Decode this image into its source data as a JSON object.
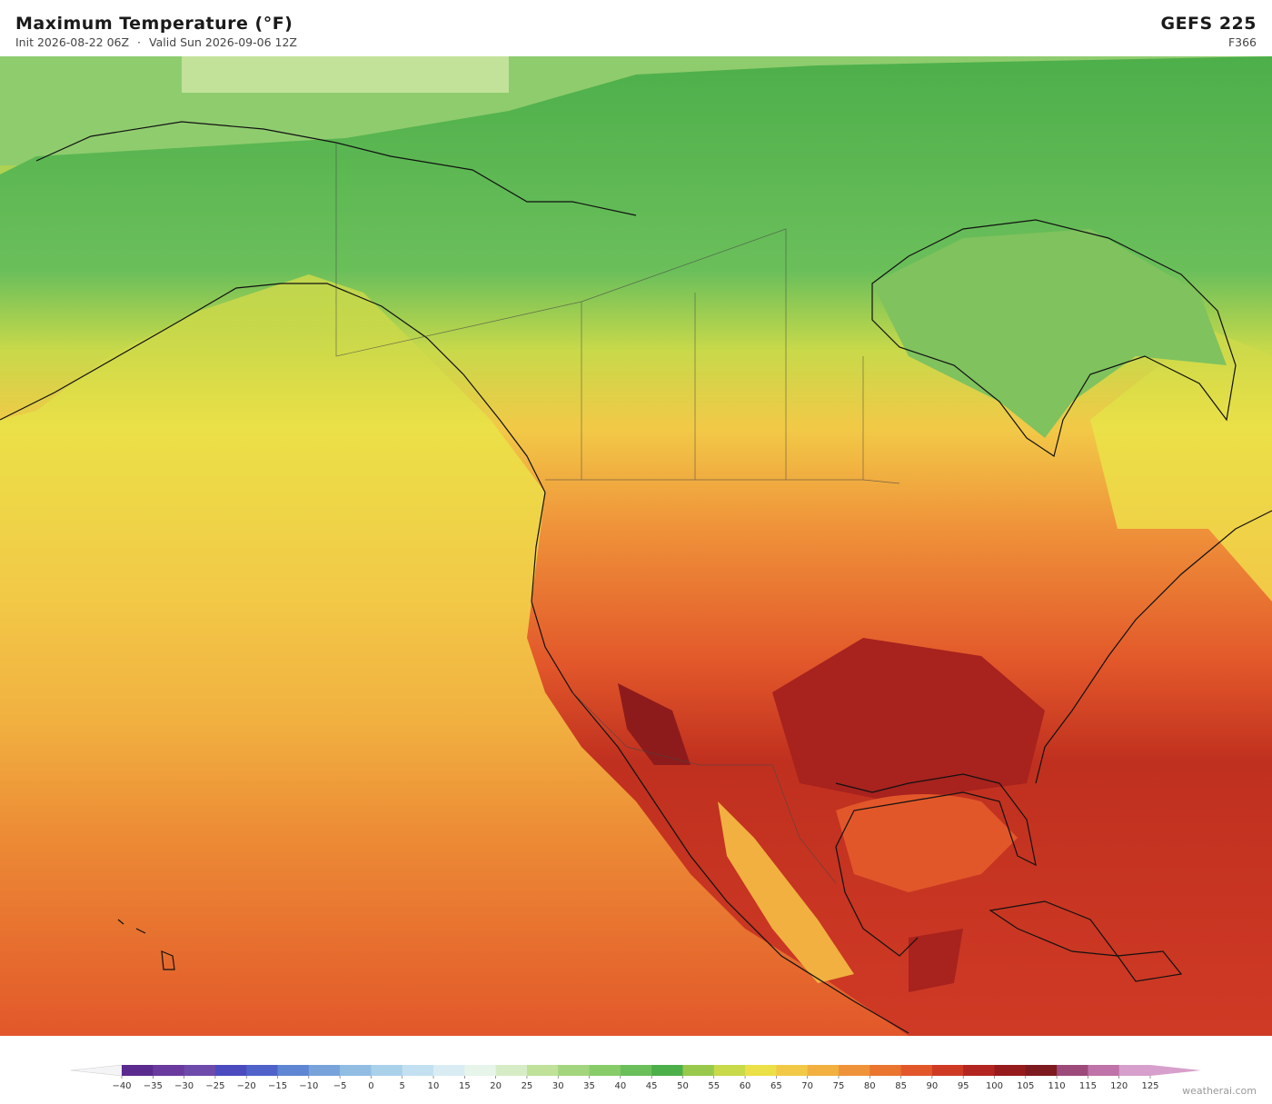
{
  "header": {
    "title": "Maximum Temperature  (°F)",
    "init": "Init 2026-08-22 06Z",
    "valid": "Valid Sun 2026-09-06 12Z",
    "model": "GEFS  225",
    "forecast_hour": "F366"
  },
  "colorbar": {
    "ticks": [
      {
        "value": -40,
        "label": "−40"
      },
      {
        "value": -35,
        "label": "−35"
      },
      {
        "value": -30,
        "label": "−30"
      },
      {
        "value": -25,
        "label": "−25"
      },
      {
        "value": -20,
        "label": "−20"
      },
      {
        "value": -15,
        "label": "−15"
      },
      {
        "value": -10,
        "label": "−10"
      },
      {
        "value": -5,
        "label": "−5"
      },
      0,
      5,
      10,
      15,
      20,
      25,
      30,
      35,
      40,
      45,
      50,
      55,
      60,
      65,
      70,
      75,
      80,
      85,
      90,
      95,
      100,
      105,
      110,
      115,
      120,
      125
    ],
    "colors": [
      "#5b2a8e",
      "#6a3a9e",
      "#6e4aab",
      "#4b4bbf",
      "#4e62c9",
      "#5f86d2",
      "#78a3da",
      "#92bde3",
      "#a9d1ea",
      "#c2e0ef",
      "#d9ecf3",
      "#e6f4ea",
      "#d6ecc6",
      "#bfe19a",
      "#a3d57f",
      "#88cc6a",
      "#6bbf5b",
      "#4daf4a",
      "#98c94c",
      "#c8d94a",
      "#ebe047",
      "#f2c947",
      "#f1b040",
      "#ef933a",
      "#e9752f",
      "#e2572a",
      "#cf3a25",
      "#b32520",
      "#961b1c",
      "#7d1a1f",
      "#9c4a7a",
      "#bf73a8",
      "#d7a0cc"
    ],
    "under_color": "#f4f4f6",
    "over_color": "#d7a0cc"
  },
  "credit": "weatherai.com"
}
